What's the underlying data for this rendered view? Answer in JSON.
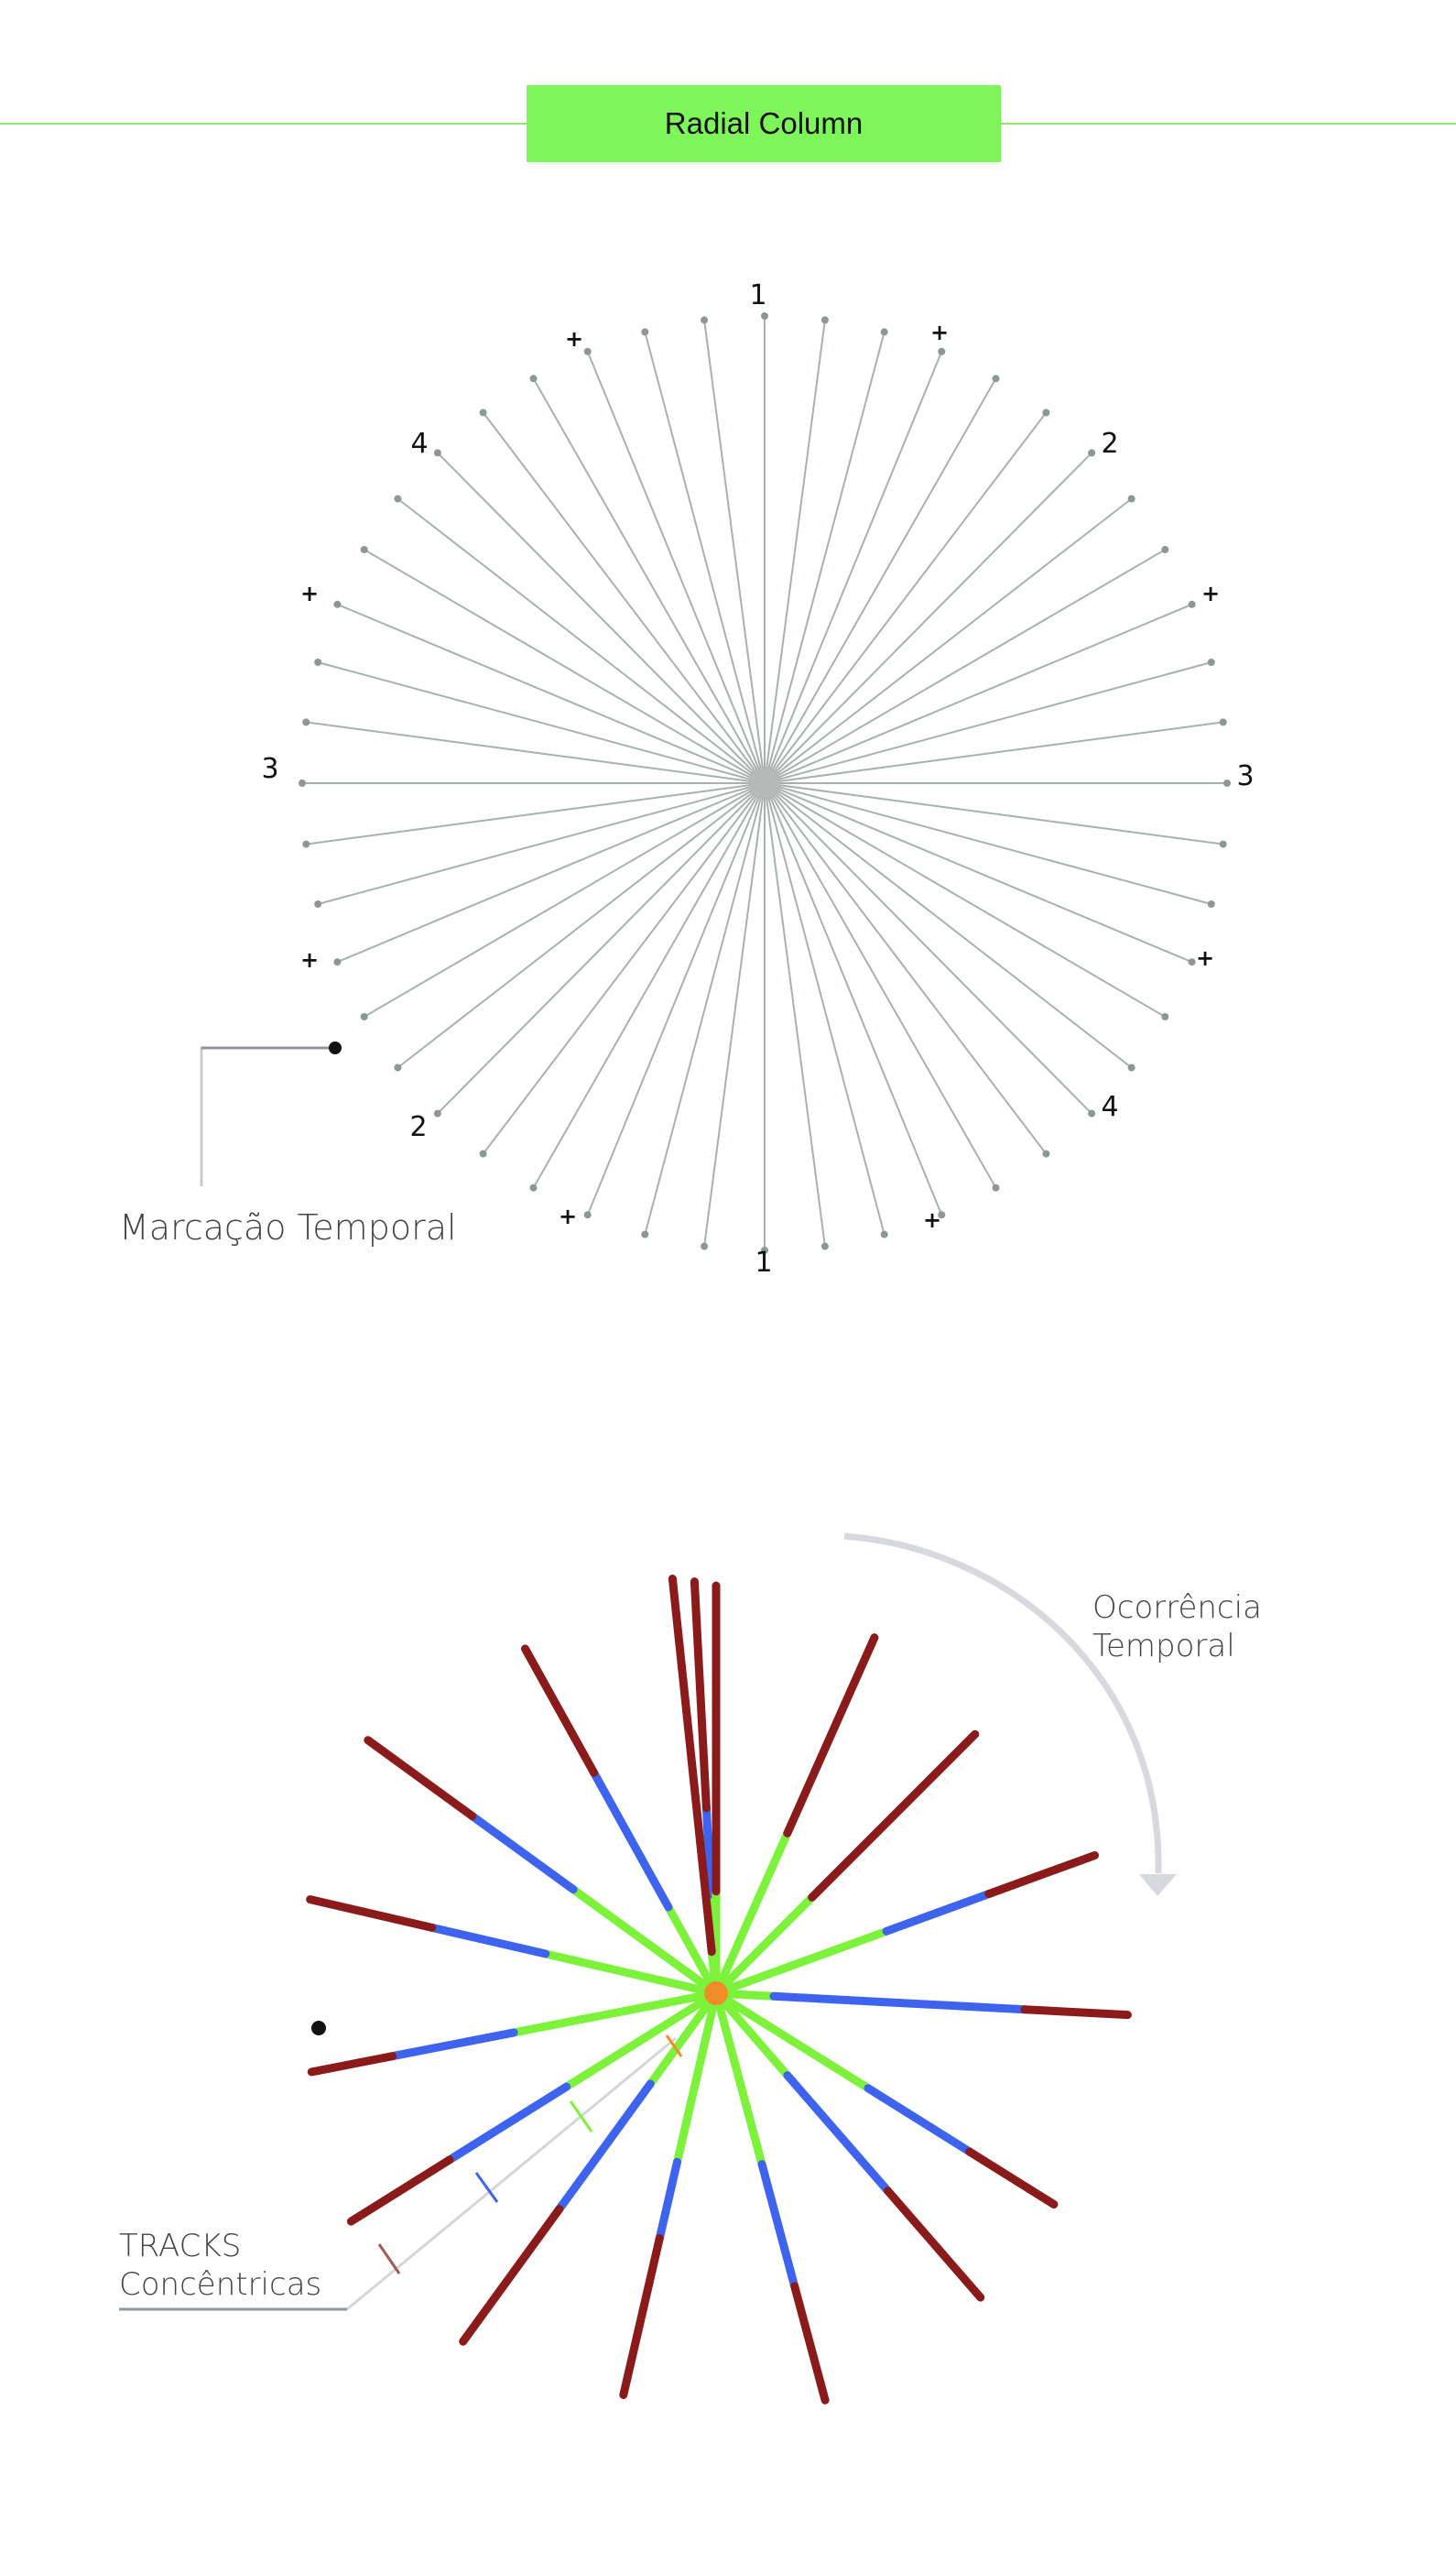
{
  "header": {
    "title": "Radial Column",
    "rule_color": "#8ee86e",
    "box_color": "#7ef55a"
  },
  "diagram_top": {
    "spoke_count": 48,
    "spoke_color": "#a8b2ad",
    "tip_color": "#8d9893",
    "hour_markers": [
      {
        "label": "1",
        "position": "top"
      },
      {
        "label": "2",
        "position": "upper-right"
      },
      {
        "label": "3",
        "position": "right"
      },
      {
        "label": "4",
        "position": "lower-right"
      },
      {
        "label": "1",
        "position": "bottom"
      },
      {
        "label": "2",
        "position": "lower-left"
      },
      {
        "label": "3",
        "position": "left"
      },
      {
        "label": "4",
        "position": "upper-left"
      }
    ],
    "plus_markers": [
      "+",
      "+",
      "+",
      "+",
      "+",
      "+",
      "+",
      "+"
    ],
    "annotation": "Marcação Temporal"
  },
  "diagram_bottom": {
    "colors": {
      "inner": "#7cf23a",
      "middle": "#3d63ef",
      "outer": "#8b1a1a",
      "hub": "#f28c28",
      "arrow": "#d7d9de"
    },
    "spokes": [
      {
        "angle": -3,
        "length": 450,
        "inner": 0.24,
        "middle": 0.45
      },
      {
        "angle": 0,
        "length": 445,
        "inner": 0.25,
        "middle": 0.25
      },
      {
        "angle": 24,
        "length": 425,
        "inner": 0.45,
        "middle": 0.45
      },
      {
        "angle": 45,
        "length": 400,
        "inner": 0.37,
        "middle": 0.37
      },
      {
        "angle": 70,
        "length": 440,
        "inner": 0.45,
        "middle": 0.72
      },
      {
        "angle": 93,
        "length": 450,
        "inner": 0.14,
        "middle": 0.75
      },
      {
        "angle": 122,
        "length": 435,
        "inner": 0.45,
        "middle": 0.75
      },
      {
        "angle": 139,
        "length": 440,
        "inner": 0.27,
        "middle": 0.65
      },
      {
        "angle": 165,
        "length": 460,
        "inner": 0.42,
        "middle": 0.72
      },
      {
        "angle": 193,
        "length": 450,
        "inner": 0.42,
        "middle": 0.61
      },
      {
        "angle": 216,
        "length": 470,
        "inner": 0.26,
        "middle": 0.62
      },
      {
        "angle": 238,
        "length": 470,
        "inner": 0.41,
        "middle": 0.73
      },
      {
        "angle": 259,
        "length": 450,
        "inner": 0.5,
        "middle": 0.8
      },
      {
        "angle": 283,
        "length": 455,
        "inner": 0.42,
        "middle": 0.7
      },
      {
        "angle": 306,
        "length": 470,
        "inner": 0.41,
        "middle": 0.7
      },
      {
        "angle": 331,
        "length": 430,
        "inner": 0.25,
        "middle": 0.64
      },
      {
        "angle": -6,
        "length": 455,
        "inner": 0.1,
        "middle": 0.1
      }
    ],
    "annotation_top": [
      "Ocorrência",
      "Temporal"
    ],
    "annotation_bottom": [
      "TRACKS",
      "Concêntricas"
    ]
  }
}
